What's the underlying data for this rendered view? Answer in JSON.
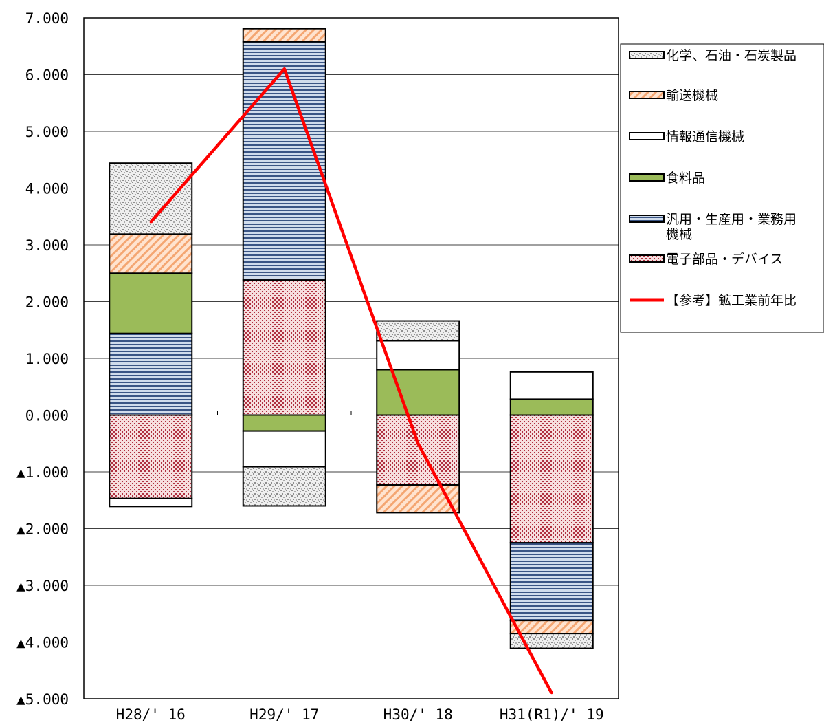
{
  "chart_data": {
    "type": "bar",
    "stacked": true,
    "categories": [
      "H28/' 16",
      "H29/' 17",
      "H30/' 18",
      "H31(R1)/' 19"
    ],
    "ylim": [
      -5,
      7
    ],
    "y_ticks": [
      {
        "value": 7,
        "label": "7.000"
      },
      {
        "value": 6,
        "label": "6.000"
      },
      {
        "value": 5,
        "label": "5.000"
      },
      {
        "value": 4,
        "label": "4.000"
      },
      {
        "value": 3,
        "label": "3.000"
      },
      {
        "value": 2,
        "label": "2.000"
      },
      {
        "value": 1,
        "label": "1.000"
      },
      {
        "value": 0,
        "label": "0.000"
      },
      {
        "value": -1,
        "label": "▲1.000"
      },
      {
        "value": -2,
        "label": "▲2.000"
      },
      {
        "value": -3,
        "label": "▲3.000"
      },
      {
        "value": -4,
        "label": "▲4.000"
      },
      {
        "value": -5,
        "label": "▲5.000"
      }
    ],
    "grid": true,
    "legend_position": "right",
    "series": [
      {
        "name": "電子部品・デバイス",
        "values": [
          -1.47,
          2.38,
          -1.23,
          -2.25
        ],
        "fill": "#f6dede",
        "pattern": "dots",
        "pattern_color": "#b03040"
      },
      {
        "name": "汎用・生産用・業務用機械",
        "values": [
          1.44,
          4.2,
          0,
          -1.37
        ],
        "fill": "#b8c8e0",
        "pattern": "hstripes",
        "pattern_color": "#3a5585"
      },
      {
        "name": "食料品",
        "values": [
          1.06,
          -0.28,
          0.8,
          0.28
        ],
        "fill": "#9bbb59",
        "pattern": "none",
        "pattern_color": ""
      },
      {
        "name": "情報通信機械",
        "values": [
          -0.14,
          -0.63,
          0.51,
          0.48
        ],
        "fill": "#ffffff",
        "pattern": "none",
        "pattern_color": ""
      },
      {
        "name": "輸送機械",
        "values": [
          0.69,
          0.23,
          -0.49,
          -0.23
        ],
        "fill": "#ffd8bc",
        "pattern": "diag",
        "pattern_color": "#f0a070"
      },
      {
        "name": "化学、石油・石炭製品",
        "values": [
          1.25,
          -0.69,
          0.35,
          -0.26
        ],
        "fill": "#eeeeee",
        "pattern": "speckle",
        "pattern_color": "#909090"
      }
    ],
    "line_series": {
      "name": "【参考】鉱工業前年比",
      "values": [
        3.4,
        6.1,
        -0.5,
        -4.9
      ],
      "color": "#ff0000"
    },
    "legend_order": [
      "化学、石油・石炭製品",
      "輸送機械",
      "情報通信機械",
      "食料品",
      "汎用・生産用・業務用機械",
      "電子部品・デバイス",
      "【参考】鉱工業前年比"
    ],
    "legend_labels": [
      {
        "name": "化学、石油・石炭製品",
        "lines": [
          "化学、石油・石炭製品"
        ]
      },
      {
        "name": "輸送機械",
        "lines": [
          "輸送機械"
        ]
      },
      {
        "name": "情報通信機械",
        "lines": [
          "情報通信機械"
        ]
      },
      {
        "name": "食料品",
        "lines": [
          "食料品"
        ]
      },
      {
        "name": "汎用・生産用・業務用機械",
        "lines": [
          "汎用・生産用・業務用",
          "機械"
        ]
      },
      {
        "name": "電子部品・デバイス",
        "lines": [
          "電子部品・デバイス"
        ]
      },
      {
        "name": "【参考】鉱工業前年比",
        "lines": [
          "【参考】鉱工業前年比"
        ]
      }
    ]
  }
}
